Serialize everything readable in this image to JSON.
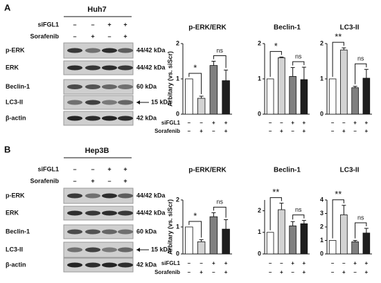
{
  "panels": [
    {
      "label": "A",
      "cell_line": "Huh7",
      "treatments": [
        {
          "name": "siFGL1",
          "signs": [
            "–",
            "–",
            "+",
            "+"
          ]
        },
        {
          "name": "Sorafenib",
          "signs": [
            "–",
            "+",
            "–",
            "+"
          ]
        }
      ],
      "blots": [
        {
          "name": "p-ERK",
          "size": "44/42 kDa"
        },
        {
          "name": "ERK",
          "size": "44/42 kDa"
        },
        {
          "name": "Beclin-1",
          "size": "60 kDa"
        },
        {
          "name": "LC3-II",
          "size": "15 kDa"
        },
        {
          "name": "β-actin",
          "size": "42 kDa"
        }
      ]
    },
    {
      "label": "B",
      "cell_line": "Hep3B",
      "treatments": [
        {
          "name": "siFGL1",
          "signs": [
            "–",
            "–",
            "+",
            "+"
          ]
        },
        {
          "name": "Sorafenib",
          "signs": [
            "–",
            "+",
            "–",
            "+"
          ]
        }
      ],
      "blots": [
        {
          "name": "p-ERK",
          "size": "44/42 kDa"
        },
        {
          "name": "ERK",
          "size": "44/42 kDa"
        },
        {
          "name": "Beclin-1",
          "size": "60 kDa"
        },
        {
          "name": "LC3-II",
          "size": "15 kDa"
        },
        {
          "name": "β-actin",
          "size": "42 kDa"
        }
      ]
    }
  ],
  "chart_data": [
    {
      "type": "bar",
      "title": "p-ERK/ERK",
      "y_label": "Arbitary (vs. siScr)",
      "ylim": [
        0,
        2
      ],
      "yticks": [
        0,
        1,
        2
      ],
      "values": [
        1,
        0.45,
        1.38,
        0.95
      ],
      "errors": [
        0,
        0.06,
        0.12,
        0.3
      ],
      "colors": [
        "#ffffff",
        "#d3d3d3",
        "#808080",
        "#1e1e1e"
      ],
      "annotations": [
        "*",
        "ns"
      ]
    },
    {
      "type": "bar",
      "title": "Beclin-1",
      "ylim": [
        0,
        2
      ],
      "yticks": [
        0,
        1,
        2
      ],
      "values": [
        1,
        1.6,
        1.07,
        0.98
      ],
      "errors": [
        0,
        0.02,
        0.25,
        0.35
      ],
      "colors": [
        "#ffffff",
        "#d3d3d3",
        "#808080",
        "#1e1e1e"
      ],
      "annotations": [
        "*",
        "ns"
      ]
    },
    {
      "type": "bar",
      "title": "LC3-II",
      "ylim": [
        0,
        2
      ],
      "yticks": [
        0,
        1,
        2
      ],
      "values": [
        1,
        1.82,
        0.75,
        1.02
      ],
      "errors": [
        0,
        0.06,
        0.04,
        0.25
      ],
      "colors": [
        "#ffffff",
        "#d3d3d3",
        "#808080",
        "#1e1e1e"
      ],
      "annotations": [
        "**",
        "ns"
      ]
    },
    {
      "type": "bar",
      "title": "p-ERK/ERK",
      "y_label": "Arbitary (vs. siScr)",
      "ylim": [
        0,
        2
      ],
      "yticks": [
        0,
        1,
        2
      ],
      "values": [
        1,
        0.45,
        1.38,
        0.92
      ],
      "errors": [
        0,
        0.08,
        0.15,
        0.35
      ],
      "colors": [
        "#ffffff",
        "#d3d3d3",
        "#808080",
        "#1e1e1e"
      ],
      "annotations": [
        "*",
        "ns"
      ]
    },
    {
      "type": "bar",
      "title": "Beclin-1",
      "ylim": [
        0,
        2.5
      ],
      "yticks": [
        0,
        1,
        2
      ],
      "values": [
        1,
        2.05,
        1.3,
        1.4
      ],
      "errors": [
        0,
        0.3,
        0.2,
        0.15
      ],
      "colors": [
        "#ffffff",
        "#d3d3d3",
        "#808080",
        "#1e1e1e"
      ],
      "annotations": [
        "**",
        "ns"
      ]
    },
    {
      "type": "bar",
      "title": "LC3-II",
      "ylim": [
        0,
        4
      ],
      "yticks": [
        0,
        1,
        2,
        3,
        4
      ],
      "values": [
        1,
        2.9,
        0.9,
        1.55
      ],
      "errors": [
        0,
        0.7,
        0.1,
        0.35
      ],
      "colors": [
        "#ffffff",
        "#d3d3d3",
        "#808080",
        "#1e1e1e"
      ],
      "annotations": [
        "**",
        "ns"
      ]
    }
  ]
}
